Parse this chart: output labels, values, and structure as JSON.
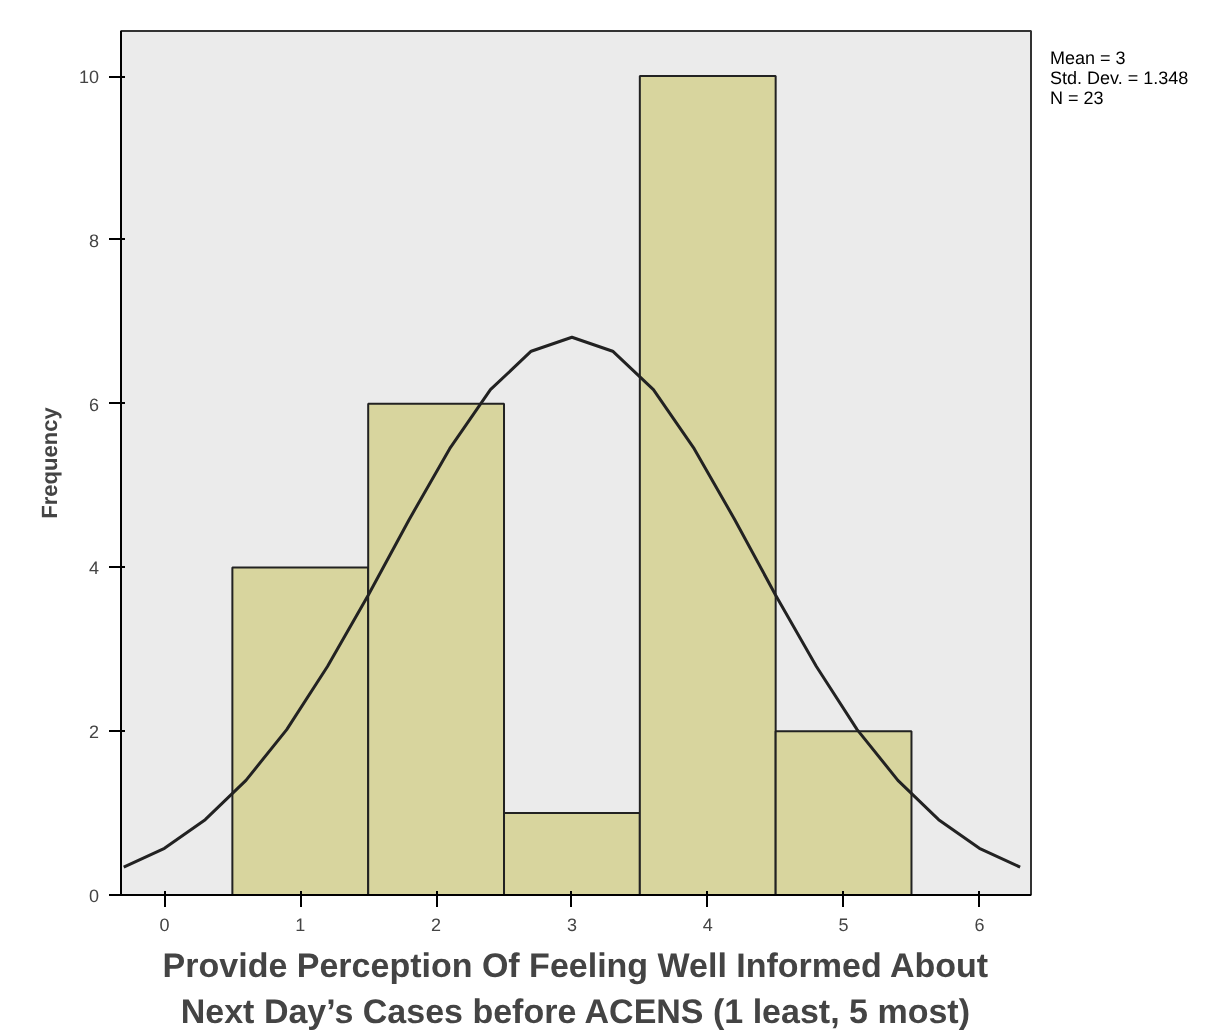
{
  "chart_data": {
    "type": "histogram",
    "xlabel": "Provide Perception Of Feeling Well Informed About\nNext Day’s Cases before ACENS (1 least, 5 most)",
    "ylabel": "Frequency",
    "bins": [
      0.5,
      1.5,
      2.5,
      3.5,
      4.5,
      5.5
    ],
    "values": [
      4,
      6,
      1,
      10,
      2
    ],
    "color": "#d8d59e",
    "series": [
      {
        "type": "line",
        "color": "#222222",
        "x": [
          -0.3,
          0.0,
          0.3,
          0.6,
          0.9,
          1.2,
          1.5,
          1.8,
          2.1,
          2.4,
          2.7,
          3.0,
          3.3,
          3.6,
          3.9,
          4.2,
          4.5,
          4.8,
          5.1,
          5.4,
          5.7,
          6.0,
          6.3
        ],
        "values": [
          0.34,
          0.57,
          0.92,
          1.4,
          2.02,
          2.79,
          3.66,
          4.58,
          5.45,
          6.17,
          6.64,
          6.81,
          6.64,
          6.17,
          5.45,
          4.58,
          3.66,
          2.79,
          2.02,
          1.4,
          0.92,
          0.57,
          0.34
        ]
      }
    ],
    "annotations": [
      "Mean = 3",
      "Std. Dev. = 1.348",
      "N = 23"
    ],
    "xlim": [
      -0.32,
      6.38
    ],
    "ylim": [
      0,
      10.55
    ],
    "xticks": [
      0,
      1,
      2,
      3,
      4,
      5,
      6
    ],
    "yticks": [
      0,
      2,
      4,
      6,
      8,
      10
    ],
    "grid": false
  }
}
